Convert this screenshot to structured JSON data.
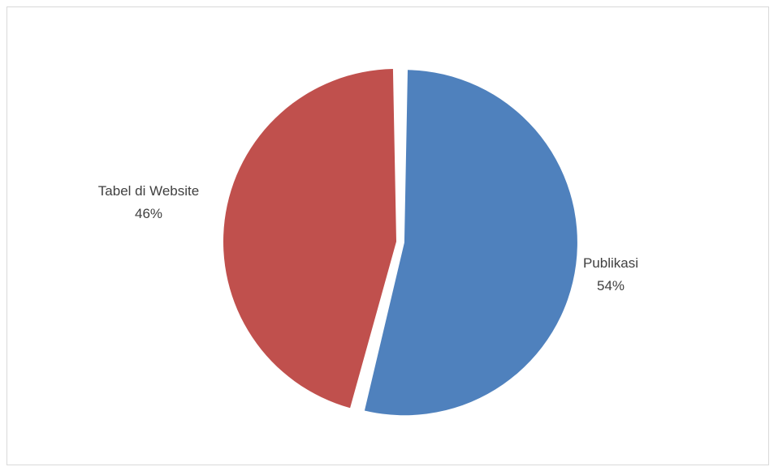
{
  "chart_data": {
    "type": "pie",
    "title": "",
    "slices": [
      {
        "label": "Publikasi",
        "value": 54,
        "value_label": "54%",
        "color": "#4f81bd",
        "exploded": true
      },
      {
        "label": "Tabel di Website",
        "value": 46,
        "value_label": "46%",
        "color": "#c0504d",
        "exploded": false
      }
    ],
    "start_angle_deg": 0,
    "direction": "clockwise",
    "legend": "none",
    "data_labels": "outside"
  }
}
